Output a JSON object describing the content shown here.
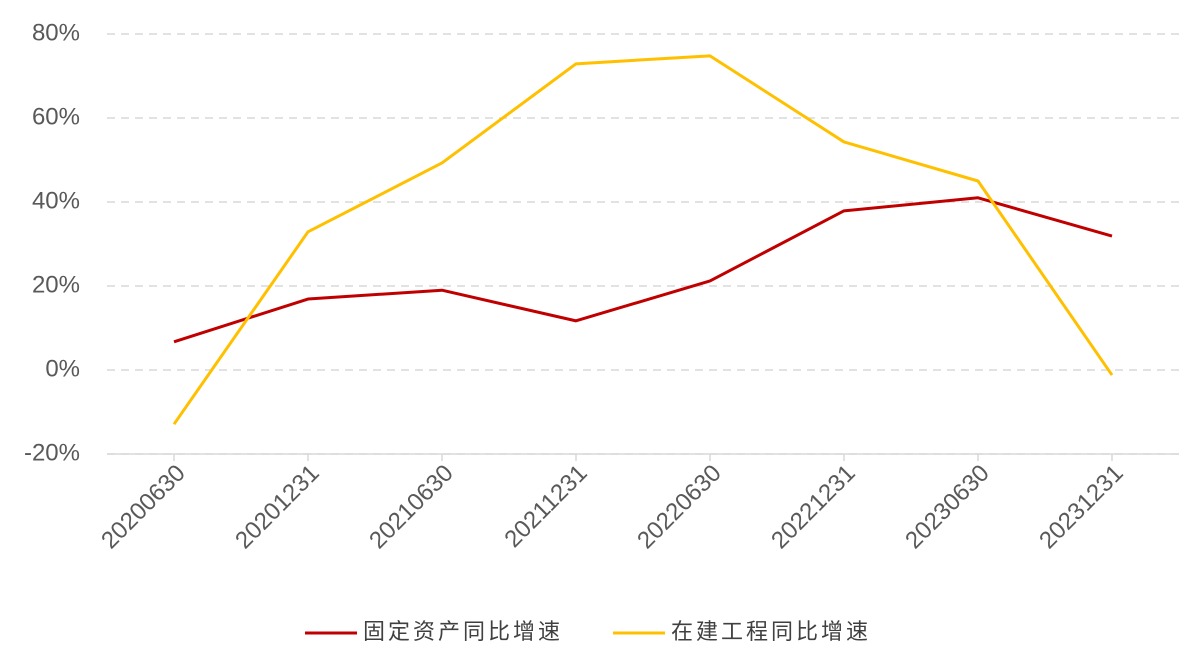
{
  "chart_data": {
    "type": "line",
    "categories": [
      "20200630",
      "20201231",
      "20210630",
      "20211231",
      "20220630",
      "20221231",
      "20230630",
      "20231231"
    ],
    "series": [
      {
        "name": "固定资产同比增速",
        "color": "#c00000",
        "values": [
          6.7,
          16.9,
          19.0,
          11.7,
          21.2,
          37.9,
          41.0,
          31.9
        ]
      },
      {
        "name": "在建工程同比增速",
        "color": "#ffc000",
        "values": [
          -12.9,
          32.9,
          49.3,
          72.9,
          74.8,
          54.3,
          45.0,
          -1.2
        ]
      }
    ],
    "ylim": [
      -20,
      80
    ],
    "yticks": [
      {
        "value": -20,
        "label": "-20%"
      },
      {
        "value": 0,
        "label": "0%"
      },
      {
        "value": 20,
        "label": "20%"
      },
      {
        "value": 40,
        "label": "40%"
      },
      {
        "value": 60,
        "label": "60%"
      },
      {
        "value": 80,
        "label": "80%"
      }
    ],
    "grid": true,
    "legend": "bottom"
  }
}
